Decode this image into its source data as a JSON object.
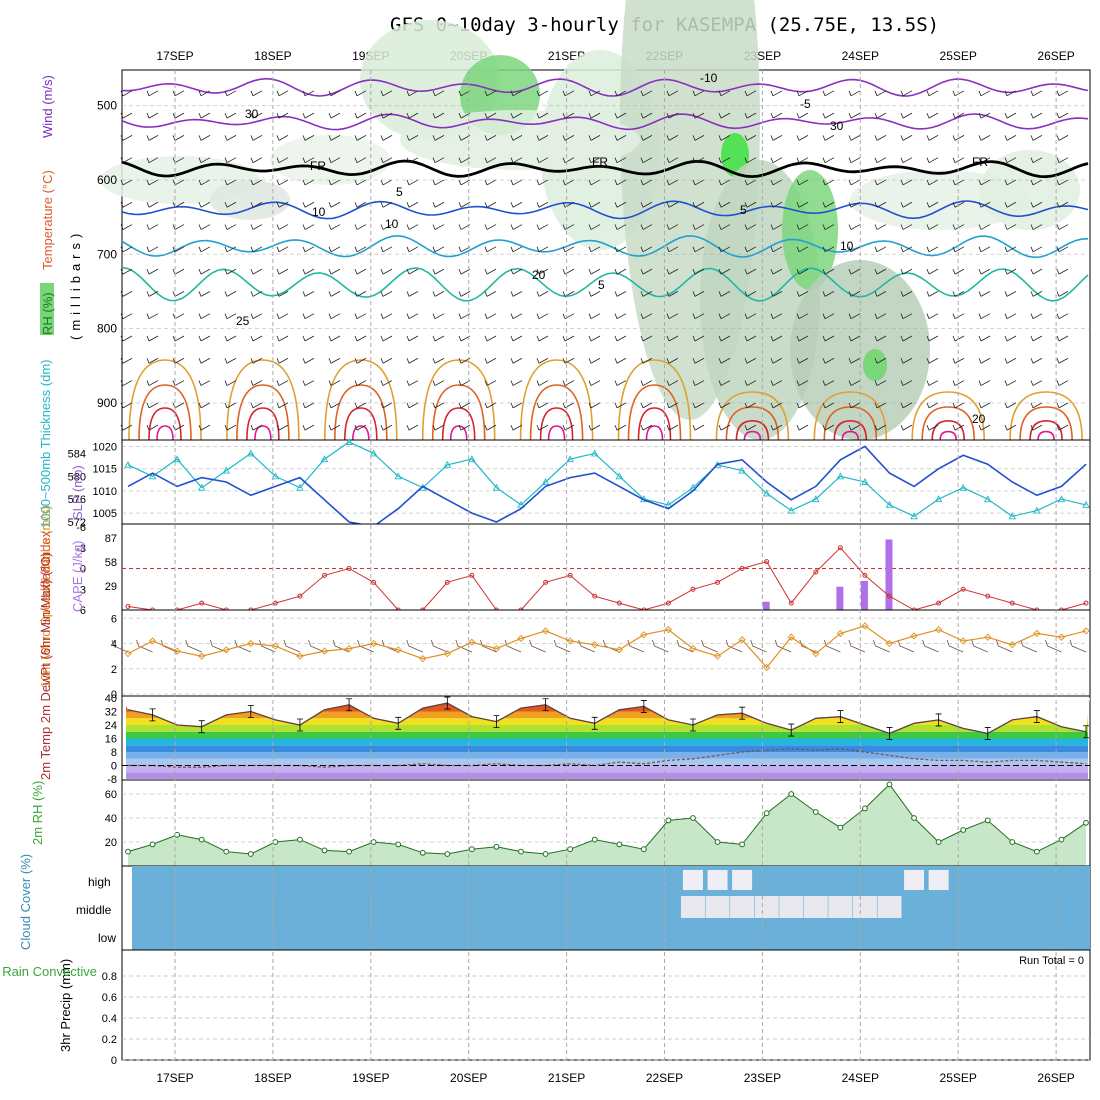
{
  "title": "GFS 0~10day 3-hourly for KASEMPA (25.75E, 13.5S)",
  "days": [
    "17SEP",
    "18SEP",
    "19SEP",
    "20SEP",
    "21SEP",
    "22SEP",
    "23SEP",
    "24SEP",
    "25SEP",
    "26SEP"
  ],
  "colors": {
    "temp": "#e0402a",
    "rh": "#3aa63a",
    "wind": "#7b2bbf",
    "slp": "#2050d0",
    "thick": "#20b8c8",
    "cape": "#b070e8",
    "li": "#d03030",
    "wspd": "#e09020",
    "cloud": "#6ab0d8"
  },
  "panels": {
    "upper": {
      "ylabel_parts": [
        "RH (%)",
        "Temperature (°C)",
        "Wind (m/s)"
      ],
      "axis_label": "(millibars)",
      "yticks": [
        "500",
        "600",
        "700",
        "800",
        "900"
      ],
      "contour_labels": [
        "-10",
        "-5",
        "FR",
        "FR",
        "FR",
        "5",
        "5",
        "10",
        "10",
        "20",
        "5",
        "25",
        "20",
        "30",
        "30",
        "10"
      ]
    },
    "slp": {
      "ylabel_left": "1000~500mb Thickness (dm)",
      "ylabel_right": "SLP (mb)",
      "left_ticks": [
        "584",
        "580",
        "576",
        "572"
      ],
      "right_ticks": [
        "1020",
        "1015",
        "1010",
        "1005"
      ]
    },
    "cape": {
      "ylabel_left": "Lifted Index",
      "ylabel_right": "CAPE (J/kg)",
      "left_ticks": [
        "-6",
        "-3",
        "0",
        "3",
        "6"
      ],
      "right_ticks": [
        "87",
        "58",
        "29"
      ]
    },
    "wind10": {
      "ylabel": "10m Wind Speed & Barbs (m/s)",
      "yticks": [
        "6",
        "4",
        "2",
        "0"
      ]
    },
    "temp2m": {
      "ylabel": "2m Temp 2m DewPt (6hr Min/Max) (°C)",
      "yticks": [
        "40",
        "32",
        "24",
        "16",
        "8",
        "0",
        "-8"
      ]
    },
    "rh2m": {
      "ylabel": "2m RH (%)",
      "yticks": [
        "60",
        "40",
        "20"
      ]
    },
    "cloud": {
      "ylabel": "Cloud Cover (%)",
      "levels": [
        "high",
        "middle",
        "low"
      ]
    },
    "precip": {
      "ylabel_left": "Total / Rain Convective",
      "ylabel_right": "3hr Precip (mm)",
      "yticks": [
        "0.8",
        "0.6",
        "0.4",
        "0.2",
        "0"
      ],
      "run_total": "Run Total = 0"
    }
  },
  "chart_data": {
    "type": "line",
    "x_days": [
      "17SEP",
      "18SEP",
      "19SEP",
      "20SEP",
      "21SEP",
      "22SEP",
      "23SEP",
      "24SEP",
      "25SEP",
      "26SEP"
    ],
    "slp_mb": [
      1011,
      1014,
      1011,
      1013,
      1012,
      1009,
      1011,
      1013,
      1008,
      1003,
      1002,
      1006,
      1011,
      1008,
      1005,
      1003,
      1006,
      1011,
      1013,
      1014,
      1011,
      1008,
      1006,
      1010,
      1016,
      1017,
      1012,
      1008,
      1011,
      1017,
      1020,
      1014,
      1011,
      1015,
      1018,
      1016,
      1012,
      1009,
      1011,
      1016
    ],
    "thickness_dm": [
      582,
      580,
      583,
      578,
      581,
      584,
      580,
      578,
      583,
      586,
      584,
      580,
      578,
      582,
      583,
      578,
      575,
      579,
      583,
      584,
      580,
      576,
      575,
      578,
      582,
      581,
      577,
      574,
      576,
      580,
      579,
      575,
      573,
      576,
      578,
      576,
      573,
      574,
      576,
      575
    ],
    "lifted_index": [
      5.5,
      6,
      6,
      5,
      6,
      6,
      5,
      4,
      1,
      0,
      2,
      6,
      6,
      2,
      1,
      6,
      6,
      2,
      1,
      4,
      5,
      6,
      5,
      3,
      2,
      0,
      -1,
      5,
      0.5,
      -3,
      1,
      4,
      6,
      5,
      3,
      4,
      5,
      6,
      6,
      5
    ],
    "cape": [
      0,
      0,
      0,
      0,
      0,
      0,
      0,
      0,
      0,
      0,
      0,
      0,
      0,
      0,
      0,
      0,
      0,
      0,
      0,
      0,
      0,
      0,
      0,
      0,
      0,
      0,
      10,
      0,
      0,
      28,
      35,
      85,
      0,
      0,
      0,
      0,
      0,
      0,
      0,
      0
    ],
    "wind10_ms": [
      3.2,
      4.2,
      3.4,
      3.0,
      3.5,
      4.0,
      3.8,
      3.0,
      3.4,
      3.6,
      4.0,
      3.5,
      2.8,
      3.2,
      4.1,
      3.6,
      4.4,
      5.0,
      4.2,
      3.9,
      3.5,
      4.7,
      5.1,
      3.6,
      3.0,
      4.3,
      2.1,
      4.5,
      3.2,
      4.8,
      5.4,
      4.0,
      4.6,
      5.1,
      4.2,
      4.5,
      3.9,
      4.8,
      4.5,
      5.0
    ],
    "temp2m_c": [
      33,
      30,
      24,
      23,
      30,
      32,
      27,
      24,
      33,
      36,
      28,
      25,
      34,
      37,
      29,
      26,
      34,
      36,
      28,
      25,
      33,
      35,
      27,
      24,
      30,
      31,
      25,
      21,
      28,
      29,
      24,
      19,
      25,
      27,
      22,
      19,
      27,
      29,
      23,
      20
    ],
    "dewpt2m_c": [
      0,
      0,
      -1,
      -1,
      0,
      0,
      0,
      0,
      -1,
      0,
      0,
      0,
      1,
      0,
      0,
      1,
      0,
      0,
      1,
      0,
      2,
      1,
      3,
      4,
      6,
      8,
      9,
      10,
      9,
      10,
      8,
      6,
      4,
      3,
      3,
      2,
      3,
      3,
      2,
      1
    ],
    "rh2m_pct": [
      12,
      18,
      26,
      22,
      12,
      10,
      20,
      22,
      13,
      12,
      20,
      18,
      11,
      10,
      14,
      16,
      12,
      10,
      14,
      22,
      18,
      14,
      38,
      40,
      20,
      18,
      44,
      60,
      45,
      32,
      48,
      68,
      40,
      20,
      30,
      38,
      20,
      12,
      22,
      36
    ],
    "cloud_high": [
      0,
      0,
      0,
      0,
      0,
      0,
      0,
      0,
      0,
      0,
      0,
      0,
      0,
      0,
      0,
      0,
      0,
      0,
      0,
      0,
      0,
      0,
      0,
      1,
      1,
      1,
      0,
      0,
      0,
      0,
      0,
      0,
      1,
      1,
      0,
      0,
      0,
      0,
      0,
      0
    ],
    "cloud_mid": [
      0,
      0,
      0,
      0,
      0,
      0,
      0,
      0,
      0,
      0,
      0,
      0,
      0,
      0,
      0,
      0,
      0,
      0,
      0,
      0,
      0,
      0,
      0,
      1,
      1,
      1,
      1,
      1,
      1,
      1,
      1,
      1,
      0,
      0,
      0,
      0,
      0,
      0,
      0,
      0
    ],
    "precip_mm": [
      0,
      0,
      0,
      0,
      0,
      0,
      0,
      0,
      0,
      0,
      0,
      0,
      0,
      0,
      0,
      0,
      0,
      0,
      0,
      0,
      0,
      0,
      0,
      0,
      0,
      0,
      0,
      0,
      0,
      0,
      0,
      0,
      0,
      0,
      0,
      0,
      0,
      0,
      0,
      0
    ],
    "ylim_slp": [
      1003,
      1021
    ],
    "ylim_thickness": [
      572,
      586
    ],
    "ylim_li": [
      6,
      -6
    ],
    "ylim_wind10": [
      0,
      6.5
    ],
    "ylim_temp2m": [
      -8,
      40
    ],
    "ylim_rh2m": [
      0,
      70
    ],
    "ylim_precip": [
      0,
      1
    ]
  }
}
